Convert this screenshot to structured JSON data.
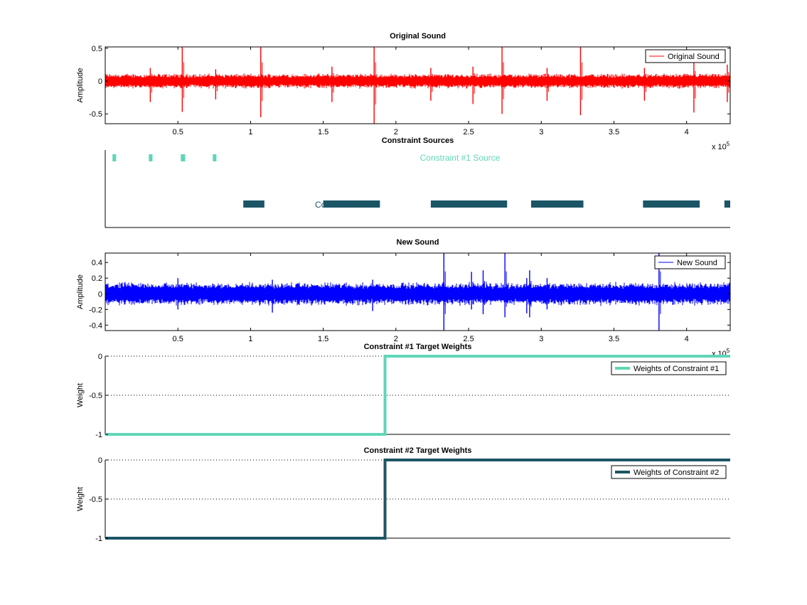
{
  "colors": {
    "original": "#ff0000",
    "new": "#0000ff",
    "c1": "#5fd6b8",
    "c2": "#1b5566"
  },
  "chart_data": [
    {
      "type": "line",
      "title": "Original Sound",
      "xlabel": "",
      "ylabel": "Amplitude",
      "xlim": [
        0,
        430000
      ],
      "ylim": [
        -0.65,
        0.52
      ],
      "x_exponent_label": "x 10",
      "x_exponent_power": "5",
      "xticks": [
        50000,
        100000,
        150000,
        200000,
        250000,
        300000,
        350000,
        400000
      ],
      "xtick_labels": [
        "0.5",
        "1",
        "1.5",
        "2",
        "2.5",
        "3",
        "3.5",
        "4"
      ],
      "yticks": [
        0.5,
        0,
        -0.5
      ],
      "ytick_labels": [
        "0.5",
        "0",
        "-0.5"
      ],
      "legend": [
        "Original Sound"
      ],
      "legend_position": "top-right",
      "series": [
        {
          "name": "Original Sound",
          "color": "#ff0000",
          "noise_amplitude": 0.1
        }
      ],
      "spikes": [
        {
          "x": 53000,
          "hi": 0.52,
          "lo": -0.47
        },
        {
          "x": 107000,
          "hi": 0.52,
          "lo": -0.55
        },
        {
          "x": 31000,
          "hi": 0.2,
          "lo": -0.32
        },
        {
          "x": 76000,
          "hi": 0.18,
          "lo": -0.28
        },
        {
          "x": 156000,
          "hi": 0.22,
          "lo": -0.32
        },
        {
          "x": 185000,
          "hi": 0.52,
          "lo": -0.65
        },
        {
          "x": 224000,
          "hi": 0.2,
          "lo": -0.3
        },
        {
          "x": 253000,
          "hi": 0.22,
          "lo": -0.35
        },
        {
          "x": 273000,
          "hi": 0.52,
          "lo": -0.5
        },
        {
          "x": 304000,
          "hi": 0.2,
          "lo": -0.3
        },
        {
          "x": 327000,
          "hi": 0.52,
          "lo": -0.52
        },
        {
          "x": 371000,
          "hi": 0.2,
          "lo": -0.3
        },
        {
          "x": 405000,
          "hi": 0.28,
          "lo": -0.48
        },
        {
          "x": 428000,
          "hi": 0.25,
          "lo": -0.32
        }
      ]
    },
    {
      "type": "bar",
      "title": "Constraint Sources",
      "xlim": [
        0,
        430000
      ],
      "labels": [
        "Constraint #1 Source",
        "Constraint #2 Source"
      ],
      "label_overlay_text": "Co                         urce",
      "series": [
        {
          "name": "Constraint #1 Source",
          "color": "#5fd6b8",
          "segments": [
            [
              5000,
              7500
            ],
            [
              30000,
              32500
            ],
            [
              52000,
              55000
            ],
            [
              74000,
              76500
            ]
          ]
        },
        {
          "name": "Constraint #2 Source",
          "color": "#1b5566",
          "segments": [
            [
              95000,
              109500
            ],
            [
              150000,
              189000
            ],
            [
              224000,
              276500
            ],
            [
              293000,
              329000
            ],
            [
              370000,
              409000
            ],
            [
              426000,
              430000
            ]
          ]
        }
      ]
    },
    {
      "type": "line",
      "title": "New Sound",
      "xlabel": "",
      "ylabel": "Amplitude",
      "xlim": [
        0,
        430000
      ],
      "ylim": [
        -0.47,
        0.52
      ],
      "x_exponent_label": "x 10",
      "x_exponent_power": "5",
      "xticks": [
        50000,
        100000,
        150000,
        200000,
        250000,
        300000,
        350000,
        400000
      ],
      "xtick_labels": [
        "0.5",
        "1",
        "1.5",
        "2",
        "2.5",
        "3",
        "3.5",
        "4"
      ],
      "yticks": [
        0.4,
        0.2,
        0,
        -0.2,
        -0.4
      ],
      "ytick_labels": [
        "0.4",
        "0.2",
        "0",
        "-0.2",
        "-0.4"
      ],
      "legend": [
        "New Sound"
      ],
      "legend_position": "top-right",
      "series": [
        {
          "name": "New Sound",
          "color": "#0000ff",
          "noise_amplitude": 0.13
        }
      ],
      "spikes": [
        {
          "x": 233000,
          "hi": 0.52,
          "lo": -0.47
        },
        {
          "x": 252000,
          "hi": 0.28,
          "lo": -0.2
        },
        {
          "x": 260000,
          "hi": 0.3,
          "lo": -0.26
        },
        {
          "x": 275000,
          "hi": 0.52,
          "lo": -0.3
        },
        {
          "x": 290000,
          "hi": 0.2,
          "lo": -0.25
        },
        {
          "x": 292000,
          "hi": 0.3,
          "lo": -0.3
        },
        {
          "x": 304000,
          "hi": 0.2,
          "lo": -0.2
        },
        {
          "x": 381000,
          "hi": 0.52,
          "lo": -0.47
        },
        {
          "x": 184000,
          "hi": 0.18,
          "lo": -0.22
        },
        {
          "x": 115000,
          "hi": 0.18,
          "lo": -0.24
        },
        {
          "x": 50000,
          "hi": 0.2,
          "lo": -0.2
        }
      ]
    },
    {
      "type": "line",
      "title": "Constraint #1 Target Weights",
      "xlabel": "",
      "ylabel": "Weight",
      "xlim": [
        0,
        430000
      ],
      "ylim": [
        -1,
        0
      ],
      "yticks": [
        0,
        -0.5,
        -1
      ],
      "ytick_labels": [
        "0",
        "-0.5",
        "-1"
      ],
      "grid": "y-dotted",
      "legend": [
        "Weights of Constraint #1"
      ],
      "legend_position": "top-right",
      "series": [
        {
          "name": "Weights of Constraint #1",
          "color": "#5fd6b8",
          "x": [
            0,
            192500,
            192500,
            430000
          ],
          "y": [
            -1,
            -1,
            0,
            0
          ]
        }
      ]
    },
    {
      "type": "line",
      "title": "Constraint #2 Target Weights",
      "xlabel": "",
      "ylabel": "Weight",
      "xlim": [
        0,
        430000
      ],
      "ylim": [
        -1,
        0
      ],
      "yticks": [
        0,
        -0.5,
        -1
      ],
      "ytick_labels": [
        "0",
        "-0.5",
        "-1"
      ],
      "grid": "y-dotted",
      "legend": [
        "Weights of Constraint #2"
      ],
      "legend_position": "top-right",
      "series": [
        {
          "name": "Weights of Constraint #2",
          "color": "#1b5566",
          "x": [
            0,
            192500,
            192500,
            430000
          ],
          "y": [
            -1,
            -1,
            0,
            0
          ]
        }
      ]
    }
  ]
}
